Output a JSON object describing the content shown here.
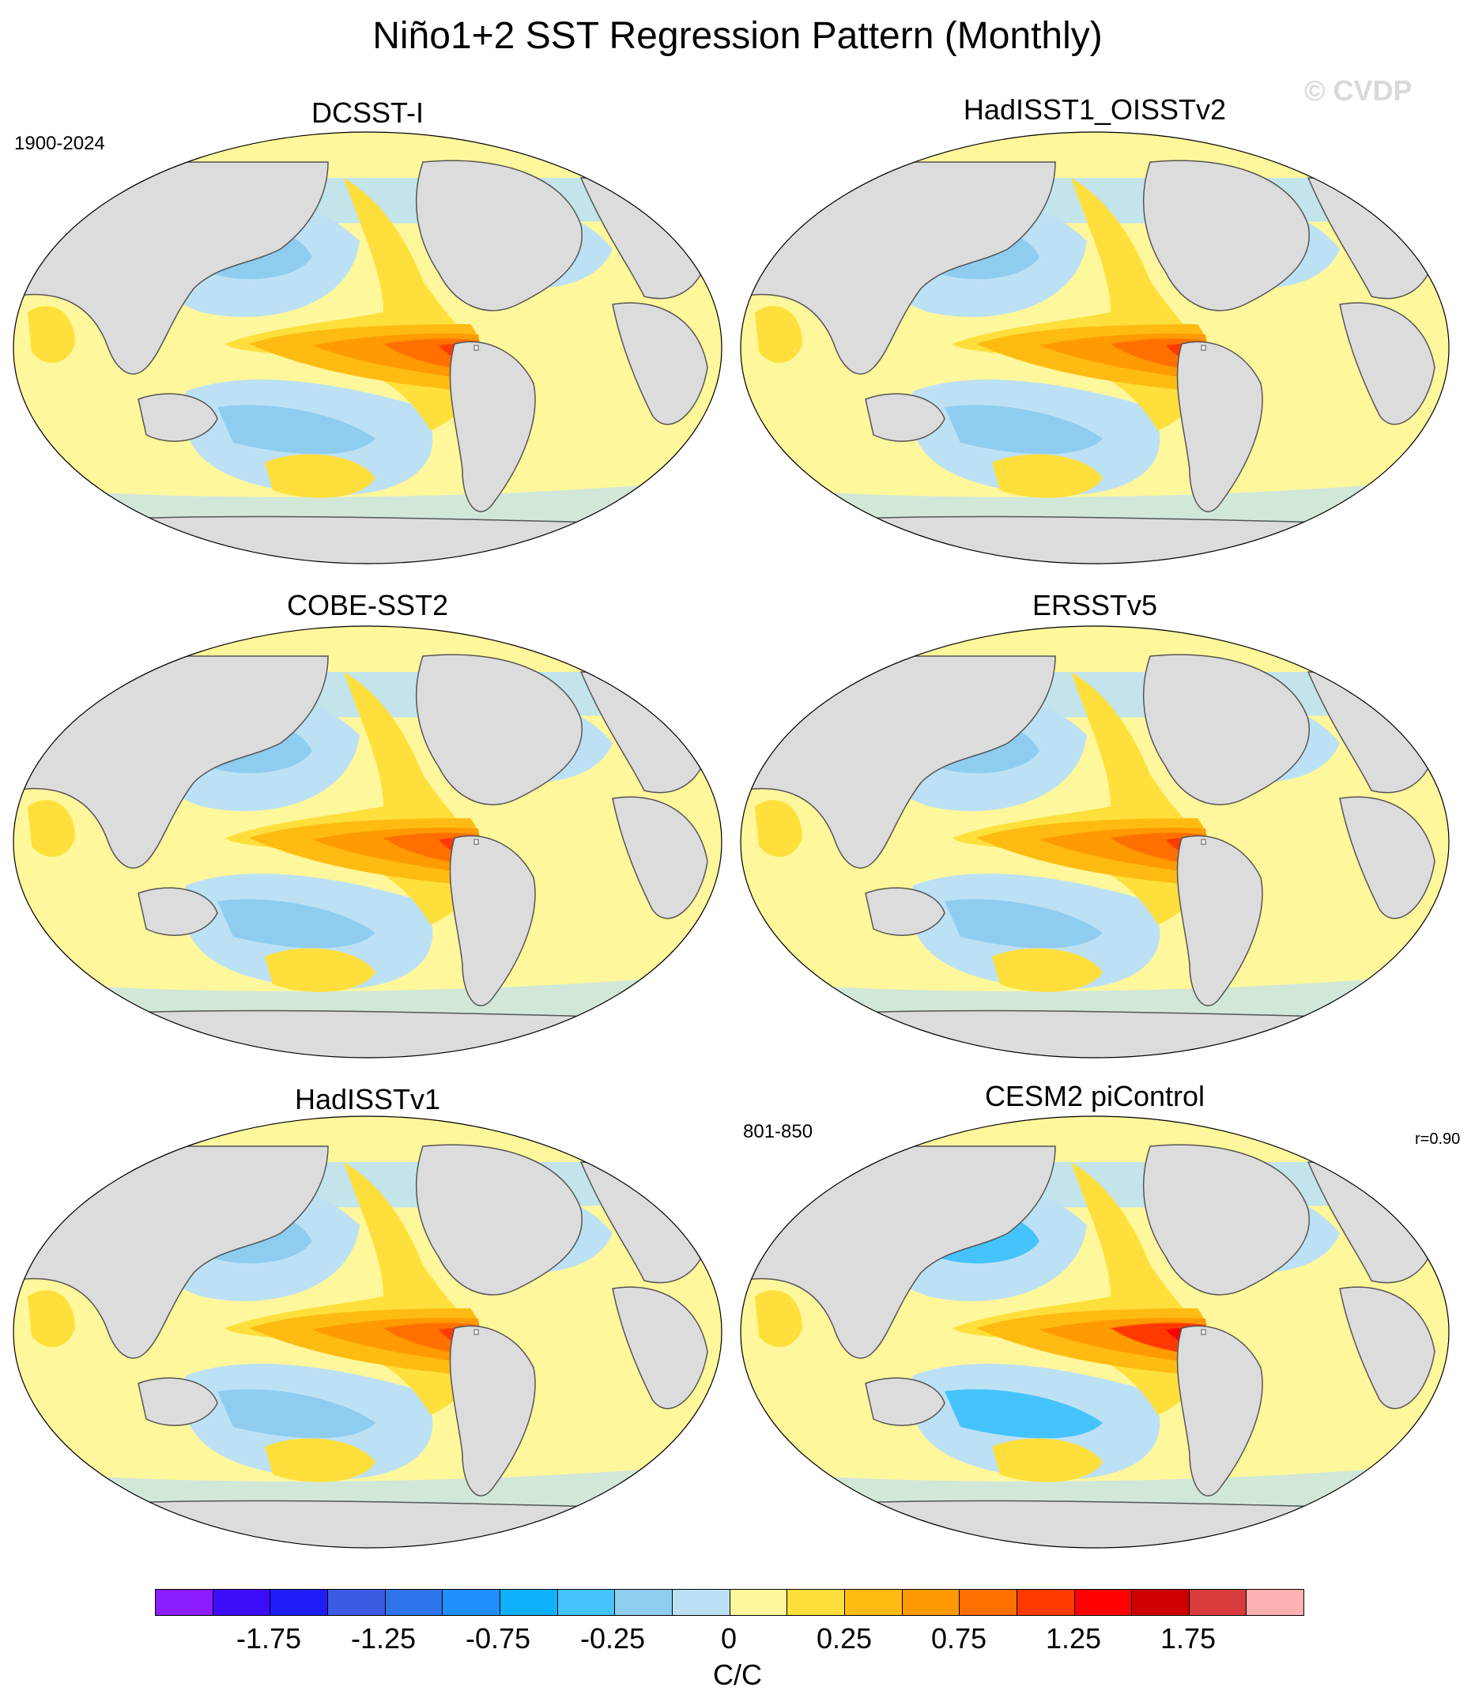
{
  "title": "Niño1+2 SST Regression Pattern (Monthly)",
  "watermark": "© CVDP",
  "panels": [
    {
      "name": "DCSST-I",
      "period": "1900-2024",
      "corr": ""
    },
    {
      "name": "HadISST1_OISSTv2",
      "period": "",
      "corr": ""
    },
    {
      "name": "COBE-SST2",
      "period": "",
      "corr": ""
    },
    {
      "name": "ERSSTv5",
      "period": "",
      "corr": ""
    },
    {
      "name": "HadISSTv1",
      "period": "",
      "corr": ""
    },
    {
      "name": "CESM2 piControl",
      "period": "801-850",
      "corr": "r=0.90"
    }
  ],
  "colorbar": {
    "units": "C/C",
    "tick_labels": [
      "-1.75",
      "-1.25",
      "-0.75",
      "-0.25",
      "0",
      "0.25",
      "0.75",
      "1.25",
      "1.75"
    ],
    "colors": [
      "#8c1dff",
      "#3c0dfd",
      "#1e1cf8",
      "#3b5be2",
      "#2e75ec",
      "#1e8ffc",
      "#0fb1fd",
      "#45c3fd",
      "#8fcdf0",
      "#bde1f4",
      "#fff79b",
      "#ffdf3b",
      "#ffbb12",
      "#ff9a00",
      "#ff7000",
      "#ff3a00",
      "#ff0000",
      "#cf0000",
      "#d83b3b",
      "#ffb0b0"
    ]
  },
  "land_color": "#dcdcdc",
  "ocean_background_color": "#fff79b"
}
